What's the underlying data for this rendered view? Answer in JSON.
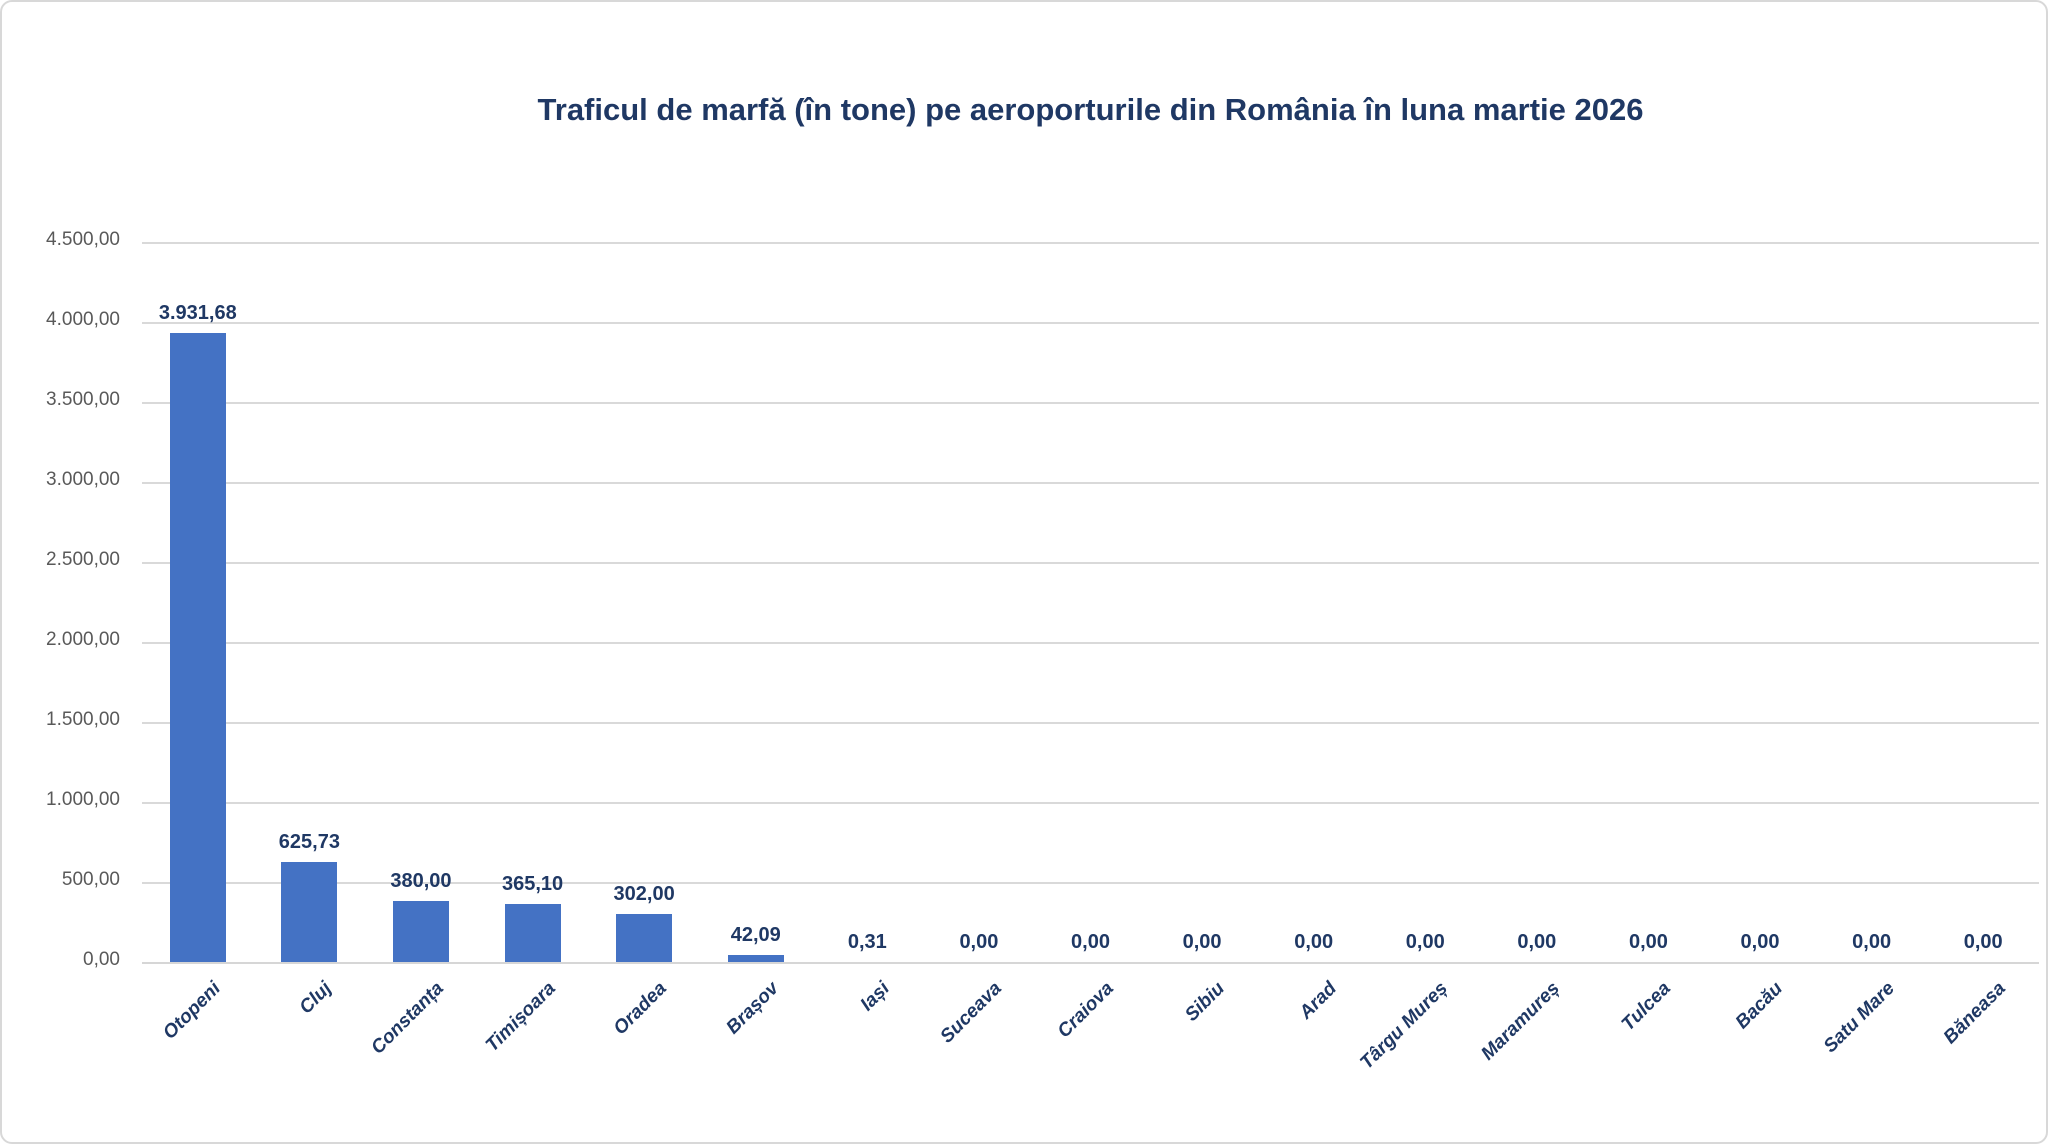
{
  "chart_data": {
    "type": "bar",
    "title": "Traficul de marfă (în tone) pe aeroporturile din România în luna martie 2026",
    "categories": [
      "Otopeni",
      "Cluj",
      "Constanța",
      "Timișoara",
      "Oradea",
      "Brașov",
      "Iași",
      "Suceava",
      "Craiova",
      "Sibiu",
      "Arad",
      "Târgu Mureș",
      "Maramureș",
      "Tulcea",
      "Bacău",
      "Satu Mare",
      "Băneasa"
    ],
    "values": [
      3931.68,
      625.73,
      380.0,
      365.1,
      302.0,
      42.09,
      0.31,
      0.0,
      0.0,
      0.0,
      0.0,
      0.0,
      0.0,
      0.0,
      0.0,
      0.0,
      0.0
    ],
    "value_labels": [
      "3.931,68",
      "625,73",
      "380,00",
      "365,10",
      "302,00",
      "42,09",
      "0,31",
      "0,00",
      "0,00",
      "0,00",
      "0,00",
      "0,00",
      "0,00",
      "0,00",
      "0,00",
      "0,00",
      "0,00"
    ],
    "xlabel": "",
    "ylabel": "",
    "ylim": [
      0,
      4500
    ],
    "y_step": 500,
    "y_tick_labels": [
      "0,00",
      "500,00",
      "1.000,00",
      "1.500,00",
      "2.000,00",
      "2.500,00",
      "3.000,00",
      "3.500,00",
      "4.000,00",
      "4.500,00"
    ],
    "grid": true,
    "legend_position": "none",
    "category_label_rotation_deg": -45,
    "number_format": "ro-RO (thousands '.', decimal ',')",
    "colors": {
      "bar": "#4472C4",
      "title_text": "#1F3864",
      "data_label_text": "#1F3864",
      "category_label_text": "#1F3864",
      "axis_tick_text": "#595959",
      "gridline": "#D9D9D9",
      "frame_border": "#D8D8D8",
      "background": "#FFFFFF"
    }
  }
}
